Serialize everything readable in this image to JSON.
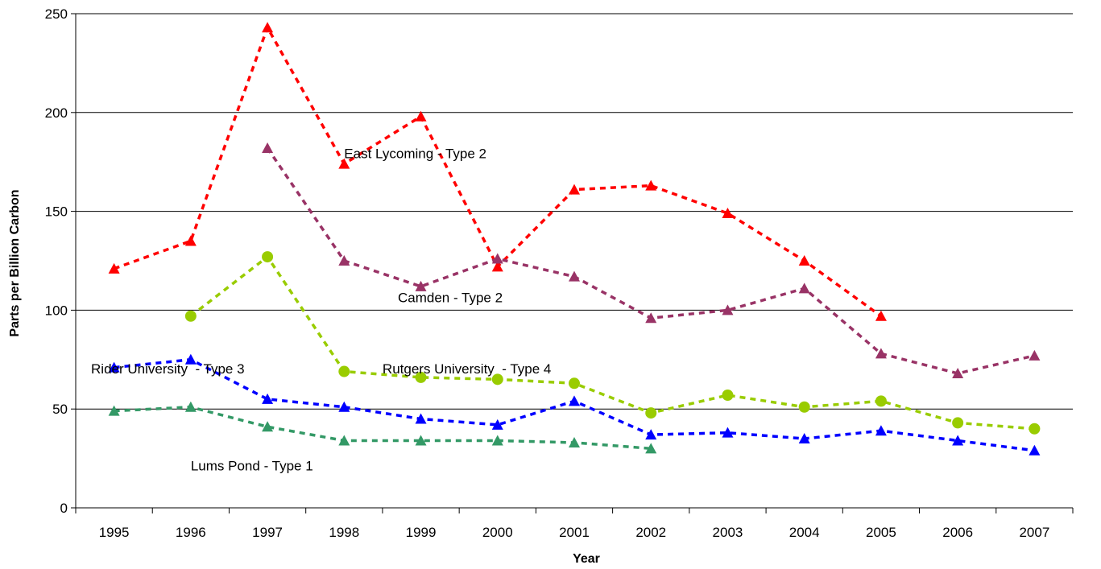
{
  "chart_data": {
    "type": "line",
    "title": "",
    "xlabel": "Year",
    "ylabel": "Parts per Billion Carbon",
    "categories": [
      "1995",
      "1996",
      "1997",
      "1998",
      "1999",
      "2000",
      "2001",
      "2002",
      "2003",
      "2004",
      "2005",
      "2006",
      "2007"
    ],
    "ylim": [
      0,
      250
    ],
    "yticks": [
      0,
      50,
      100,
      150,
      200,
      250
    ],
    "grid": true,
    "legend": "none",
    "series": [
      {
        "name": "East Lycoming - Type 2",
        "color": "#ff0000",
        "marker": "triangle",
        "values": [
          121,
          135,
          243,
          174,
          198,
          122,
          161,
          163,
          149,
          125,
          97,
          null,
          null
        ]
      },
      {
        "name": "Camden - Type 2",
        "color": "#993366",
        "marker": "triangle",
        "values": [
          null,
          null,
          182,
          125,
          112,
          126,
          117,
          96,
          100,
          111,
          78,
          68,
          77
        ]
      },
      {
        "name": "Rutgers University  - Type 4",
        "color": "#99cc00",
        "marker": "circle",
        "values": [
          null,
          97,
          127,
          69,
          66,
          65,
          63,
          48,
          57,
          51,
          54,
          43,
          40
        ]
      },
      {
        "name": "Rider University  - Type 3",
        "color": "#0000ff",
        "marker": "triangle",
        "values": [
          71,
          75,
          55,
          51,
          45,
          42,
          54,
          37,
          38,
          35,
          39,
          34,
          29
        ]
      },
      {
        "name": "Lums Pond - Type 1",
        "color": "#339966",
        "marker": "triangle",
        "values": [
          49,
          51,
          41,
          34,
          34,
          34,
          33,
          30,
          null,
          null,
          null,
          null,
          null
        ]
      }
    ]
  }
}
